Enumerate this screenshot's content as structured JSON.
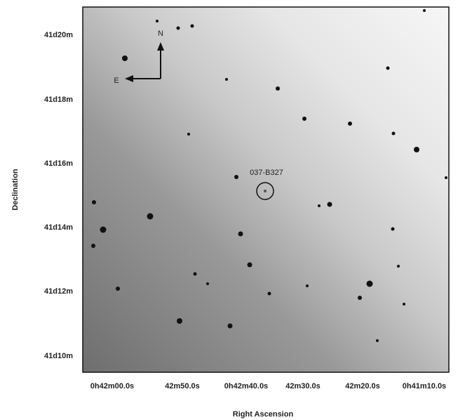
{
  "axes": {
    "x_title": "Right Ascension",
    "y_title": "Declination",
    "x_ticks": [
      "0h42m00.0s",
      "42m50.0s",
      "0h42m40.0s",
      "42m30.0s",
      "42m20.0s",
      "0h41m10.0s"
    ],
    "y_ticks": [
      "41d20m",
      "41d18m",
      "41d16m",
      "41d14m",
      "41d12m",
      "41d10m"
    ]
  },
  "annotations": {
    "target": "037-B327",
    "north": "N",
    "east": "E"
  }
}
